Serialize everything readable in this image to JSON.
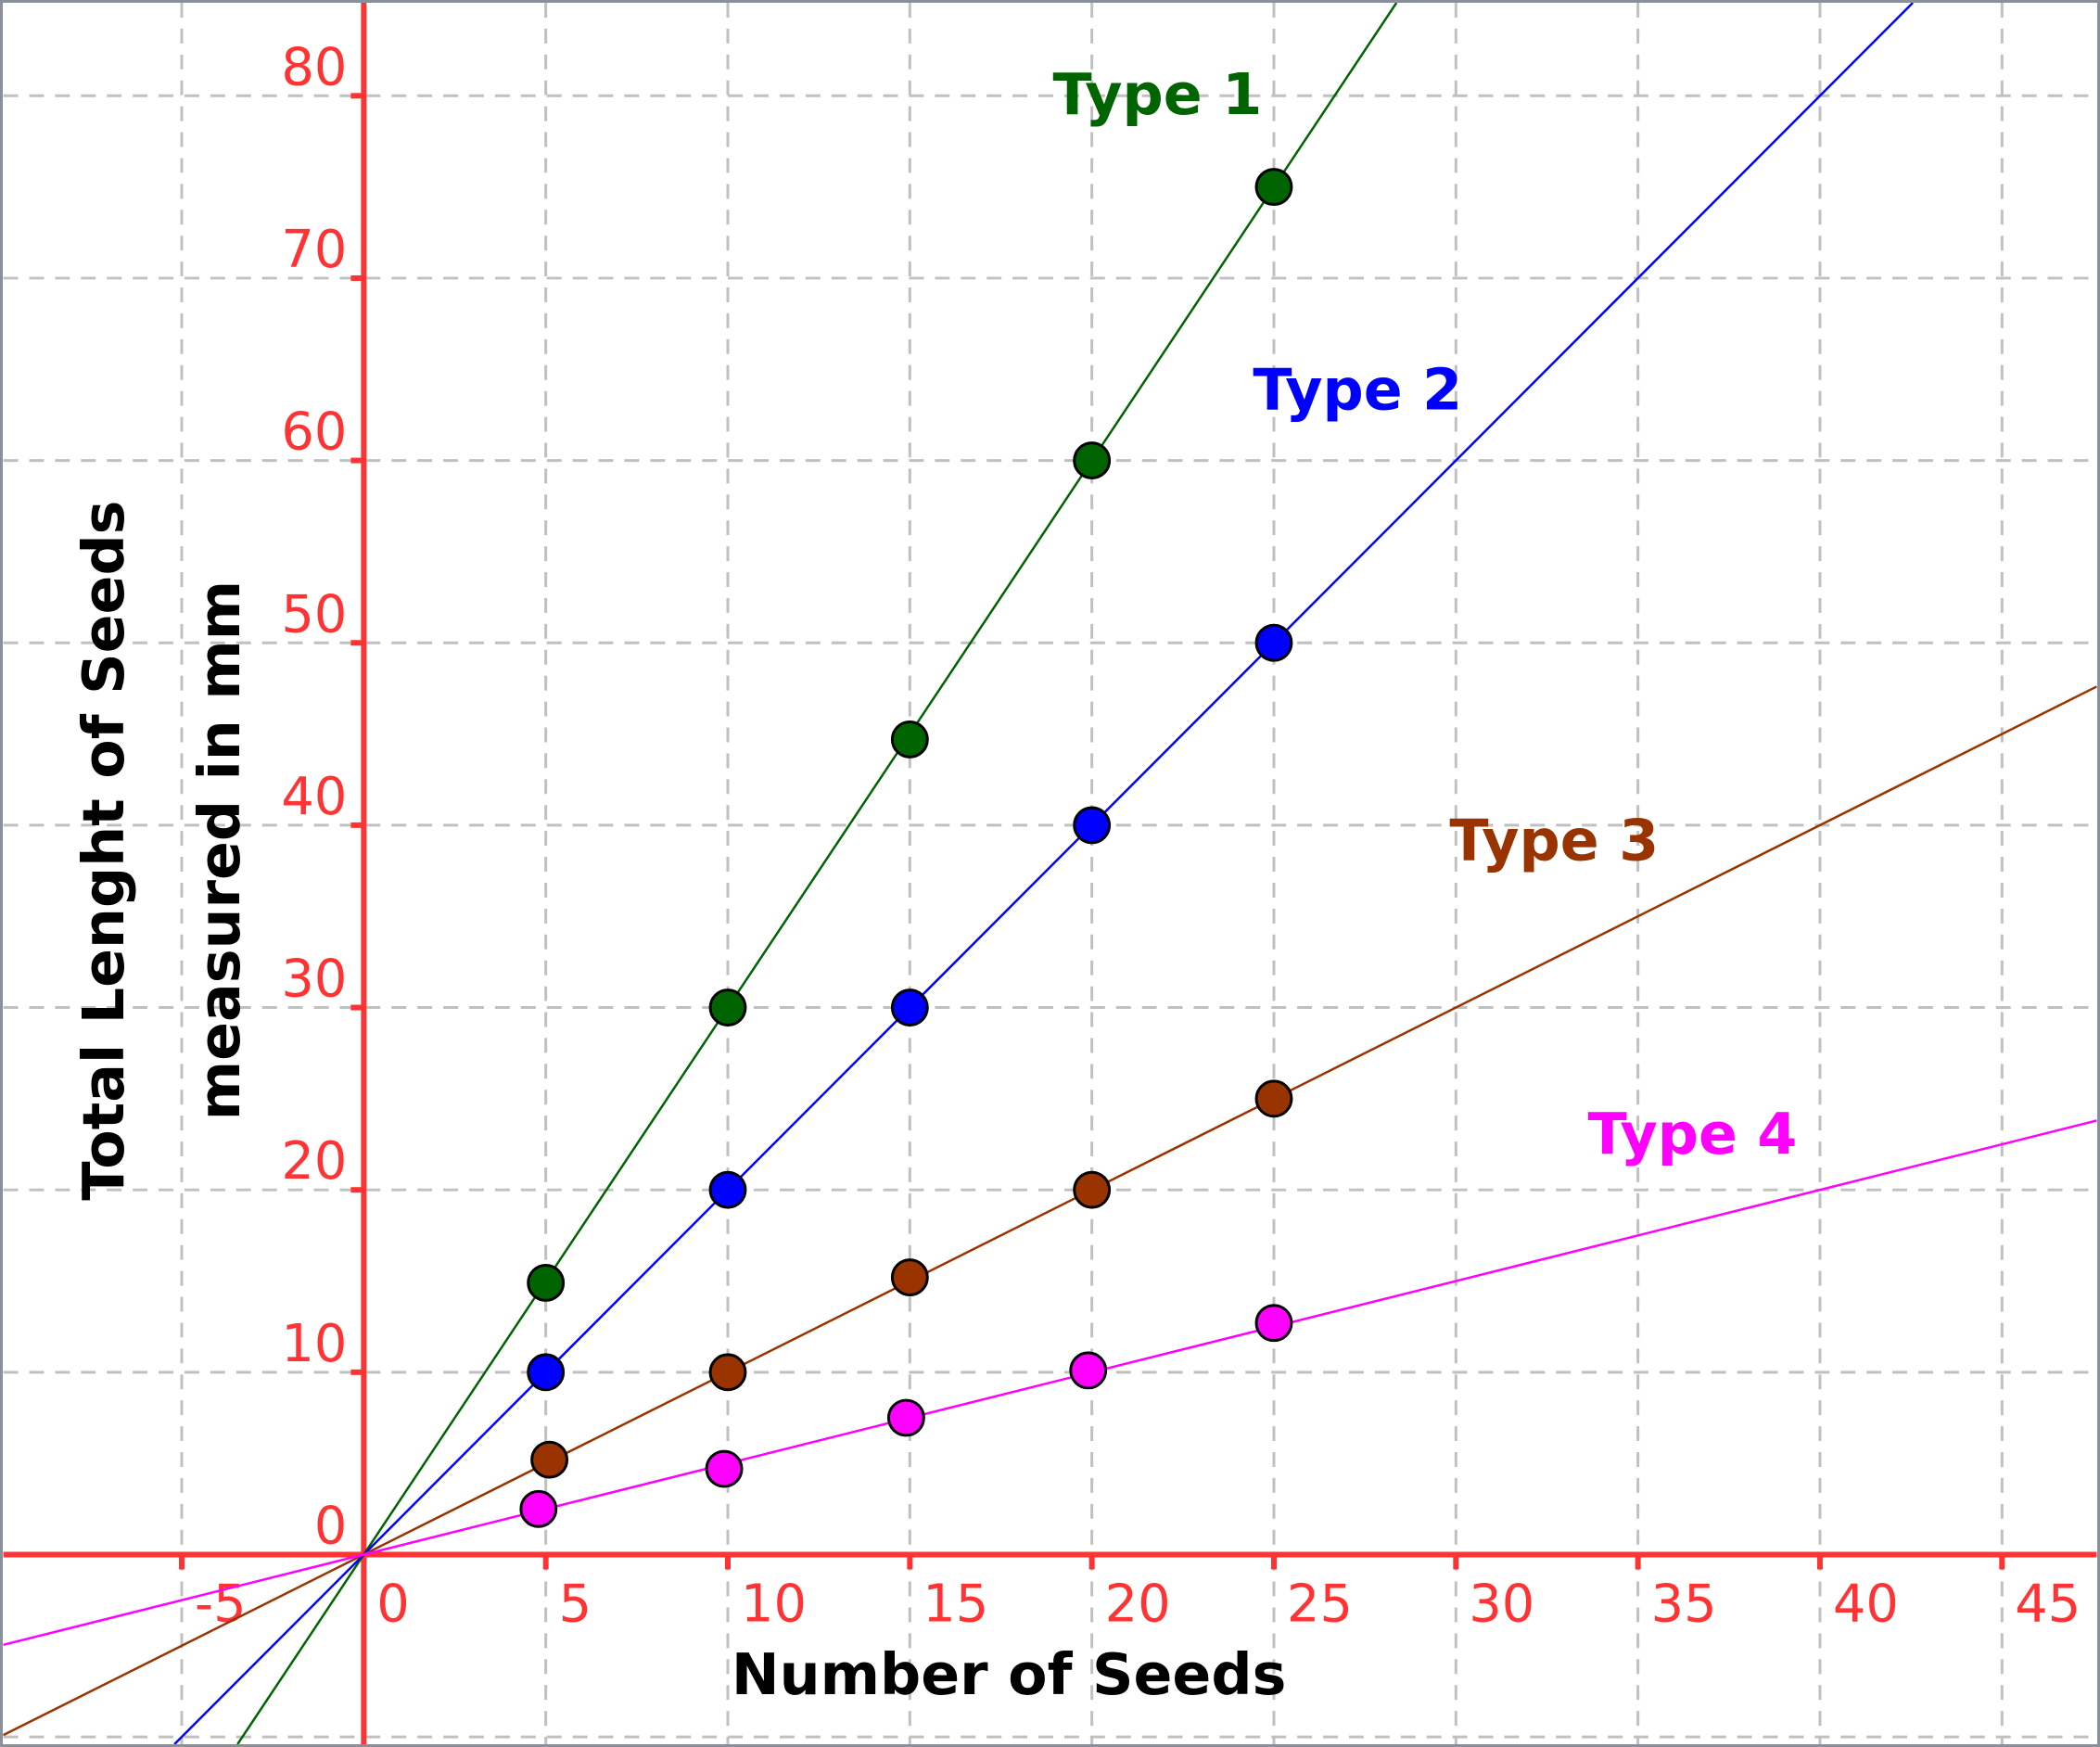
{
  "chart_data": {
    "type": "line",
    "title": "",
    "xlabel": "Number of Seeds",
    "ylabel": [
      "Total Lenght of Seeds",
      "measured in mm"
    ],
    "xlim": [
      -9.9,
      47.6
    ],
    "ylim": [
      -10.4,
      85.1
    ],
    "grid": true,
    "x_ticks": [
      "-5",
      "0",
      "5",
      "10",
      "15",
      "20",
      "25",
      "30",
      "35",
      "40",
      "45"
    ],
    "y_ticks": [
      "0",
      "10",
      "20",
      "30",
      "40",
      "50",
      "60",
      "70",
      "80"
    ],
    "axis_color": "#ff3333",
    "series": [
      {
        "name": "Type 1",
        "color": "#006400",
        "slope": 3,
        "points": [
          [
            5,
            14.9
          ],
          [
            10,
            30
          ],
          [
            15,
            44.7
          ],
          [
            20,
            60
          ],
          [
            25,
            75
          ]
        ]
      },
      {
        "name": "Type 2",
        "color": "#0000ff",
        "slope": 2,
        "points": [
          [
            5,
            10
          ],
          [
            10,
            20
          ],
          [
            15,
            30
          ],
          [
            20,
            40
          ],
          [
            25,
            50
          ]
        ]
      },
      {
        "name": "Type 3",
        "color": "#993300",
        "slope": 1,
        "points": [
          [
            5.1,
            5.2
          ],
          [
            10,
            10
          ],
          [
            15,
            15.2
          ],
          [
            20,
            20
          ],
          [
            25,
            25
          ]
        ]
      },
      {
        "name": "Type 4",
        "color": "#ff00ff",
        "slope": 0.5,
        "points": [
          [
            4.8,
            2.5
          ],
          [
            9.9,
            4.7
          ],
          [
            14.9,
            7.5
          ],
          [
            19.9,
            10.1
          ],
          [
            25,
            12.7
          ]
        ]
      }
    ]
  }
}
